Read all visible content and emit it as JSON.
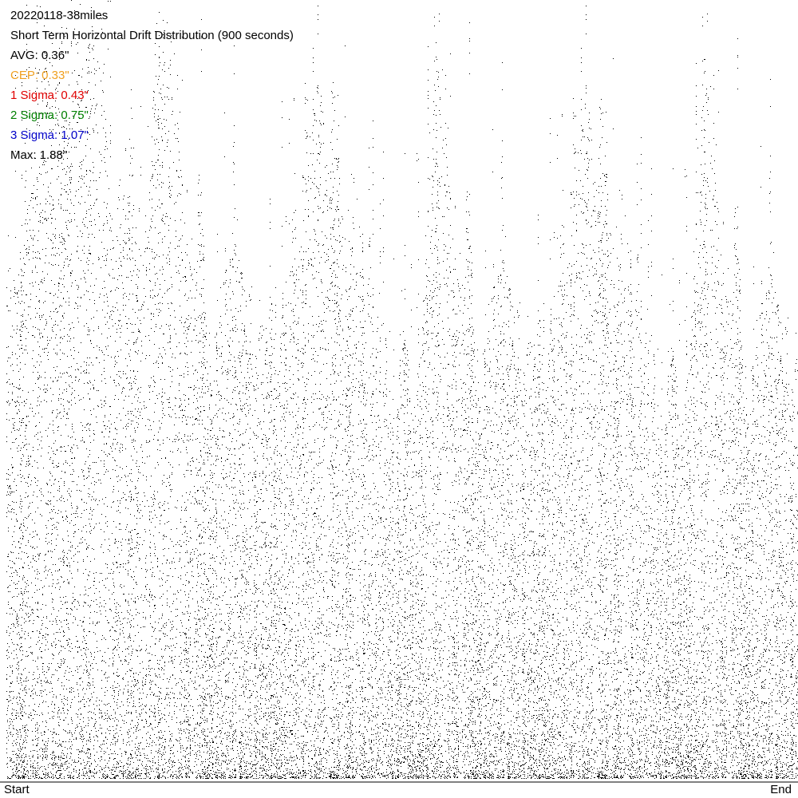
{
  "chart_data": {
    "type": "scatter",
    "title": "20220118-38miles",
    "subtitle": "Short Term Horizontal Drift Distribution (900 seconds)",
    "stats": [
      {
        "label": "AVG: 0.36\"",
        "color": "#000000"
      },
      {
        "label": "CEP: 0.33\"",
        "color": "#f0a020"
      },
      {
        "label": "1 Sigma: 0.43\"",
        "color": "#e00000"
      },
      {
        "label": "2 Sigma: 0.75\"",
        "color": "#008000"
      },
      {
        "label": "3 Sigma: 1.07\"",
        "color": "#0000c8"
      },
      {
        "label": "Max: 1.88\"",
        "color": "#000000"
      }
    ],
    "x_labels": [
      "Start",
      "End"
    ],
    "color": "#000000"
  }
}
